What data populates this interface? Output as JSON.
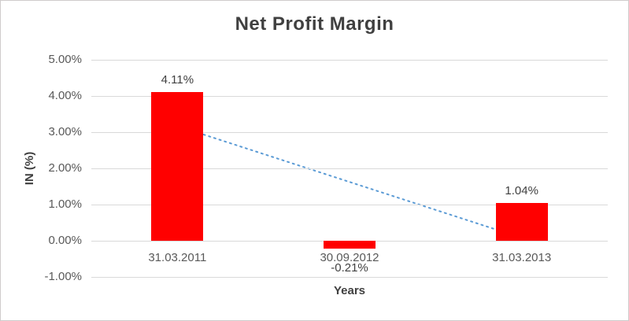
{
  "chart_data": {
    "type": "bar",
    "title": "Net Profit Margin",
    "xlabel": "Years",
    "ylabel": "IN (%)",
    "categories": [
      "31.03.2011",
      "30.09.2012",
      "31.03.2013"
    ],
    "values": [
      4.11,
      -0.21,
      1.04
    ],
    "value_labels": [
      "4.11%",
      "-0.21%",
      "1.04%"
    ],
    "ylim": [
      -1,
      5
    ],
    "y_ticks": [
      {
        "value": 5,
        "label": "5.00%"
      },
      {
        "value": 4,
        "label": "4.00%"
      },
      {
        "value": 3,
        "label": "3.00%"
      },
      {
        "value": 2,
        "label": "2.00%"
      },
      {
        "value": 1,
        "label": "1.00%"
      },
      {
        "value": 0,
        "label": "0.00%"
      },
      {
        "value": -1,
        "label": "-1.00%"
      }
    ],
    "grid": true,
    "legend": "none",
    "bar_color": "#ff0000",
    "trendline": {
      "style": "dotted",
      "color": "#5b9bd5",
      "points": [
        {
          "x": 0,
          "y": 3.17
        },
        {
          "x": 2,
          "y": 0.08
        }
      ]
    }
  },
  "colors": {
    "title_text": "#404040",
    "tick_text": "#595959",
    "gridline": "#d9d9d9",
    "border": "#cfcccc",
    "background": "#ffffff"
  }
}
